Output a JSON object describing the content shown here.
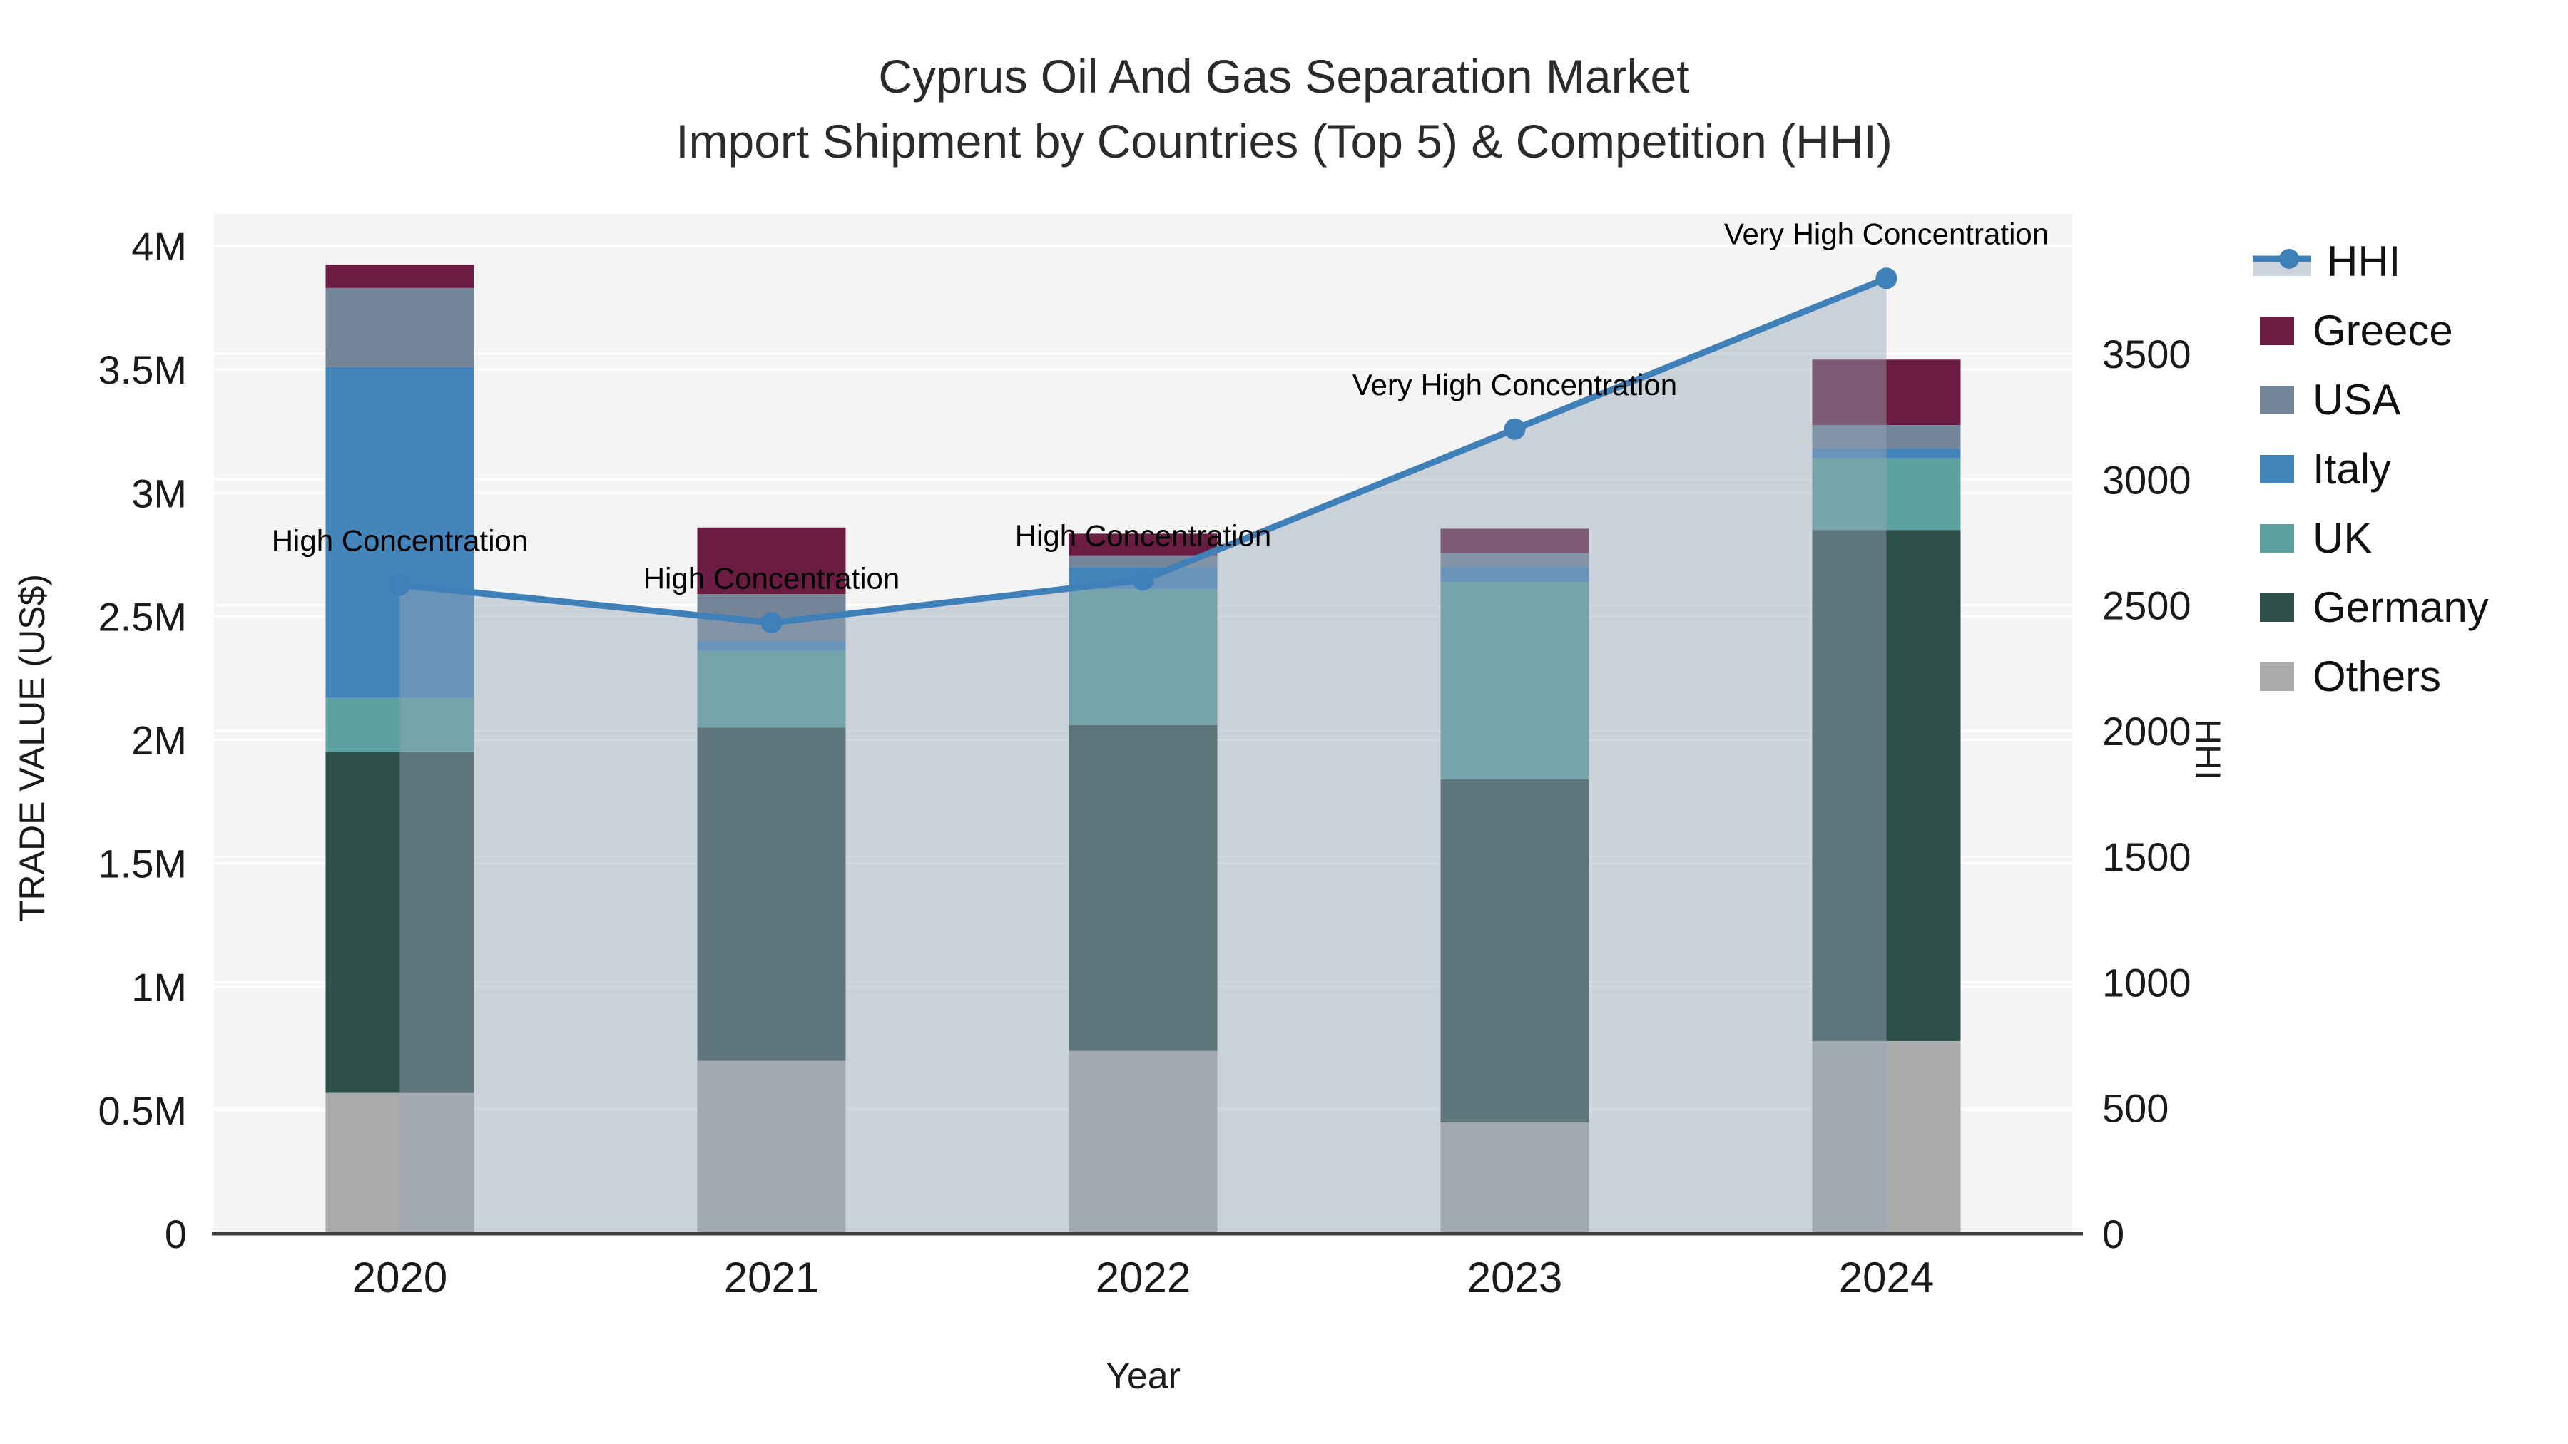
{
  "title": {
    "line1": "Cyprus Oil And Gas Separation Market",
    "line2": "Import Shipment by Countries (Top 5) & Competition (HHI)"
  },
  "axes": {
    "x_title": "Year",
    "y_left_title": "TRADE VALUE (US$)",
    "y_right_title": "HHI"
  },
  "colors": {
    "plot_background": "#f4f4f4",
    "gridline": "#ffffff",
    "axis_line": "#3f3f3f",
    "text": "#1a1a1a",
    "annotation_text": "#000000"
  },
  "legend": {
    "items": [
      {
        "label": "HHI",
        "type": "line",
        "color": "#4080B8",
        "fill": "#ccd3dd"
      },
      {
        "label": "Greece",
        "type": "bar",
        "color": "#6B1C42"
      },
      {
        "label": "USA",
        "type": "bar",
        "color": "#74859A"
      },
      {
        "label": "Italy",
        "type": "bar",
        "color": "#4384BA"
      },
      {
        "label": "UK",
        "type": "bar",
        "color": "#5CA2A0"
      },
      {
        "label": "Germany",
        "type": "bar",
        "color": "#2E4F49"
      },
      {
        "label": "Others",
        "type": "bar",
        "color": "#A9ACAB"
      }
    ]
  },
  "chart_data": {
    "type": "bar",
    "subtype": "stacked-bars-with-line",
    "title": "Cyprus Oil And Gas Separation Market — Import Shipment by Countries (Top 5) & Competition (HHI)",
    "xlabel": "Year",
    "ylabel": "TRADE VALUE (US$)",
    "ylabel_right": "HHI",
    "categories": [
      "2020",
      "2021",
      "2022",
      "2023",
      "2024"
    ],
    "series": [
      {
        "name": "Others",
        "color": "#A9ACAB",
        "values": [
          570000,
          700000,
          740000,
          450000,
          780000
        ]
      },
      {
        "name": "Germany",
        "color": "#2E4F49",
        "values": [
          1380000,
          1350000,
          1320000,
          1390000,
          2070000
        ]
      },
      {
        "name": "UK",
        "color": "#5CA2A0",
        "values": [
          220000,
          310000,
          550000,
          800000,
          290000
        ]
      },
      {
        "name": "Italy",
        "color": "#4384BA",
        "values": [
          1340000,
          40000,
          90000,
          60000,
          40000
        ]
      },
      {
        "name": "USA",
        "color": "#74859A",
        "values": [
          320000,
          190000,
          45000,
          55000,
          95000
        ]
      },
      {
        "name": "Greece",
        "color": "#6B1C42",
        "values": [
          95000,
          270000,
          90000,
          100000,
          265000
        ]
      }
    ],
    "line_series": {
      "name": "HHI",
      "color": "#4080B8",
      "area_fill": "rgba(154,166,184,0.45)",
      "values": [
        2580,
        2430,
        2600,
        3200,
        3800
      ]
    },
    "annotations": [
      {
        "category": "2020",
        "text": "High Concentration"
      },
      {
        "category": "2021",
        "text": "High Concentration"
      },
      {
        "category": "2022",
        "text": "High Concentration"
      },
      {
        "category": "2023",
        "text": "Very High Concentration"
      },
      {
        "category": "2024",
        "text": "Very High Concentration"
      }
    ],
    "yticks_left": [
      {
        "value": 0,
        "label": "0"
      },
      {
        "value": 500000,
        "label": "0.5M"
      },
      {
        "value": 1000000,
        "label": "1M"
      },
      {
        "value": 1500000,
        "label": "1.5M"
      },
      {
        "value": 2000000,
        "label": "2M"
      },
      {
        "value": 2500000,
        "label": "2.5M"
      },
      {
        "value": 3000000,
        "label": "3M"
      },
      {
        "value": 3500000,
        "label": "3.5M"
      },
      {
        "value": 4000000,
        "label": "4M"
      }
    ],
    "yticks_right": [
      {
        "value": 0,
        "label": "0"
      },
      {
        "value": 500,
        "label": "500"
      },
      {
        "value": 1000,
        "label": "1000"
      },
      {
        "value": 1500,
        "label": "1500"
      },
      {
        "value": 2000,
        "label": "2000"
      },
      {
        "value": 2500,
        "label": "2500"
      },
      {
        "value": 3000,
        "label": "3000"
      },
      {
        "value": 3500,
        "label": "3500"
      }
    ],
    "ylim_left": [
      0,
      4130000
    ],
    "ylim_right": [
      0,
      4056
    ],
    "grid": true,
    "legend_position": "right"
  }
}
